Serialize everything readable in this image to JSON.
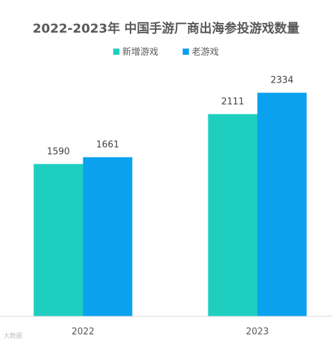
{
  "chart_data": {
    "type": "bar",
    "title": "2022-2023年 中国手游厂商出海参投游戏数量",
    "categories": [
      "2022",
      "2023"
    ],
    "series": [
      {
        "name": "新增游戏",
        "values": [
          1590,
          2111
        ],
        "color": "#1ECFBF"
      },
      {
        "name": "老游戏",
        "values": [
          1661,
          2334
        ],
        "color": "#0AA2EE"
      }
    ],
    "xlabel": "",
    "ylabel": "",
    "ylim": [
      0,
      2650
    ],
    "grid": false,
    "legend_position": "top-center"
  },
  "watermark": "大数据"
}
